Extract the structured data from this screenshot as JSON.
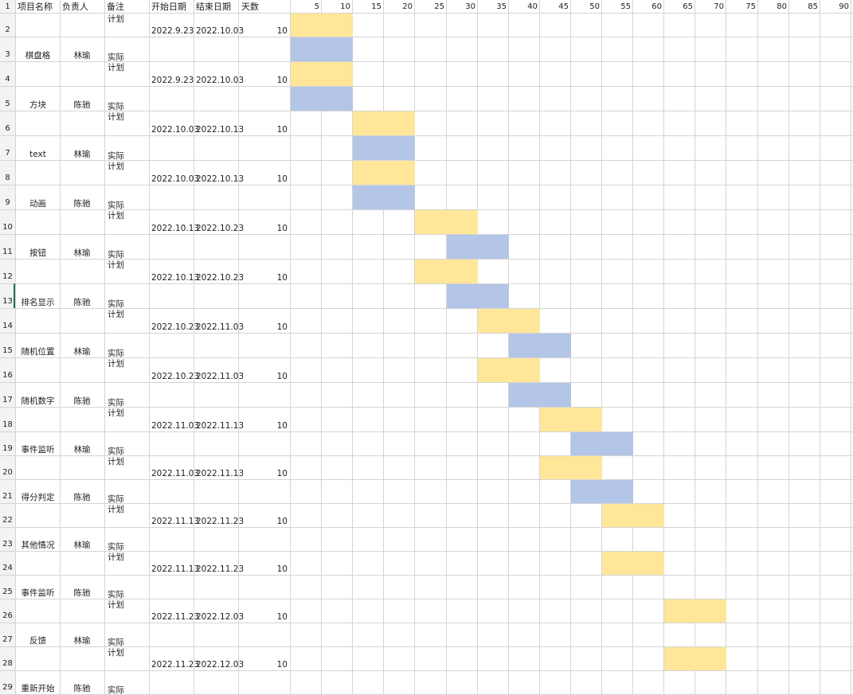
{
  "header": {
    "project_name": "项目名称",
    "owner": "负责人",
    "note": "备注",
    "start_date": "开始日期",
    "end_date": "结束日期",
    "days": "天数"
  },
  "row_numbers": [
    "1",
    "2",
    "3",
    "4",
    "5",
    "6",
    "7",
    "8",
    "9",
    "10",
    "11",
    "12",
    "13",
    "14",
    "15",
    "16",
    "17",
    "18",
    "19",
    "20",
    "21",
    "22",
    "23",
    "24",
    "25",
    "26",
    "27",
    "28",
    "29"
  ],
  "selected_row": "13",
  "timeline_ticks": [
    "5",
    "10",
    "15",
    "20",
    "25",
    "30",
    "35",
    "40",
    "45",
    "50",
    "55",
    "60",
    "65",
    "70",
    "75",
    "80",
    "85",
    "90"
  ],
  "labels": {
    "plan": "计划",
    "actual": "实际"
  },
  "colors": {
    "plan_bar": "#ffe699",
    "actual_bar": "#b4c6e7",
    "gridline": "#d4d4d4",
    "selected_row_marker": "#217346"
  },
  "tasks": [
    {
      "name": "棋盘格",
      "owner": "林瑜",
      "start": "2022.9.23",
      "end": "2022.10.03",
      "days": "10",
      "plan": [
        0,
        10
      ],
      "actual": [
        0,
        10
      ]
    },
    {
      "name": "方块",
      "owner": "陈驰",
      "start": "2022.9.23",
      "end": "2022.10.03",
      "days": "10",
      "plan": [
        0,
        10
      ],
      "actual": [
        0,
        10
      ]
    },
    {
      "name": "text",
      "owner": "林瑜",
      "start": "2022.10.03",
      "end": "2022.10.13",
      "days": "10",
      "plan": [
        10,
        20
      ],
      "actual": [
        10,
        20
      ]
    },
    {
      "name": "动画",
      "owner": "陈驰",
      "start": "2022.10.03",
      "end": "2022.10.13",
      "days": "10",
      "plan": [
        10,
        20
      ],
      "actual": [
        10,
        20
      ]
    },
    {
      "name": "按钮",
      "owner": "林瑜",
      "start": "2022.10.13",
      "end": "2022.10.23",
      "days": "10",
      "plan": [
        20,
        30
      ],
      "actual": [
        25,
        35
      ]
    },
    {
      "name": "排名显示",
      "owner": "陈驰",
      "start": "2022.10.13",
      "end": "2022.10.23",
      "days": "10",
      "plan": [
        20,
        30
      ],
      "actual": [
        25,
        35
      ]
    },
    {
      "name": "随机位置",
      "owner": "林瑜",
      "start": "2022.10.23",
      "end": "2022.11.03",
      "days": "10",
      "plan": [
        30,
        40
      ],
      "actual": [
        35,
        45
      ]
    },
    {
      "name": "随机数字",
      "owner": "陈驰",
      "start": "2022.10.23",
      "end": "2022.11.03",
      "days": "10",
      "plan": [
        30,
        40
      ],
      "actual": [
        35,
        45
      ]
    },
    {
      "name": "事件监听",
      "owner": "林瑜",
      "start": "2022.11.03",
      "end": "2022.11.13",
      "days": "10",
      "plan": [
        40,
        50
      ],
      "actual": [
        45,
        55
      ]
    },
    {
      "name": "得分判定",
      "owner": "陈驰",
      "start": "2022.11.03",
      "end": "2022.11.13",
      "days": "10",
      "plan": [
        40,
        50
      ],
      "actual": [
        45,
        55
      ]
    },
    {
      "name": "其他情况",
      "owner": "林瑜",
      "start": "2022.11.13",
      "end": "2022.11.23",
      "days": "10",
      "plan": [
        50,
        60
      ],
      "actual": null
    },
    {
      "name": "事件监听",
      "owner": "陈驰",
      "start": "2022.11.13",
      "end": "2022.11.23",
      "days": "10",
      "plan": [
        50,
        60
      ],
      "actual": null
    },
    {
      "name": "反馈",
      "owner": "林瑜",
      "start": "2022.11.23",
      "end": "2022.12.03",
      "days": "10",
      "plan": [
        60,
        70
      ],
      "actual": null
    },
    {
      "name": "重新开始",
      "owner": "陈驰",
      "start": "2022.11.23",
      "end": "2022.12.03",
      "days": "10",
      "plan": [
        60,
        70
      ],
      "actual": null
    }
  ]
}
